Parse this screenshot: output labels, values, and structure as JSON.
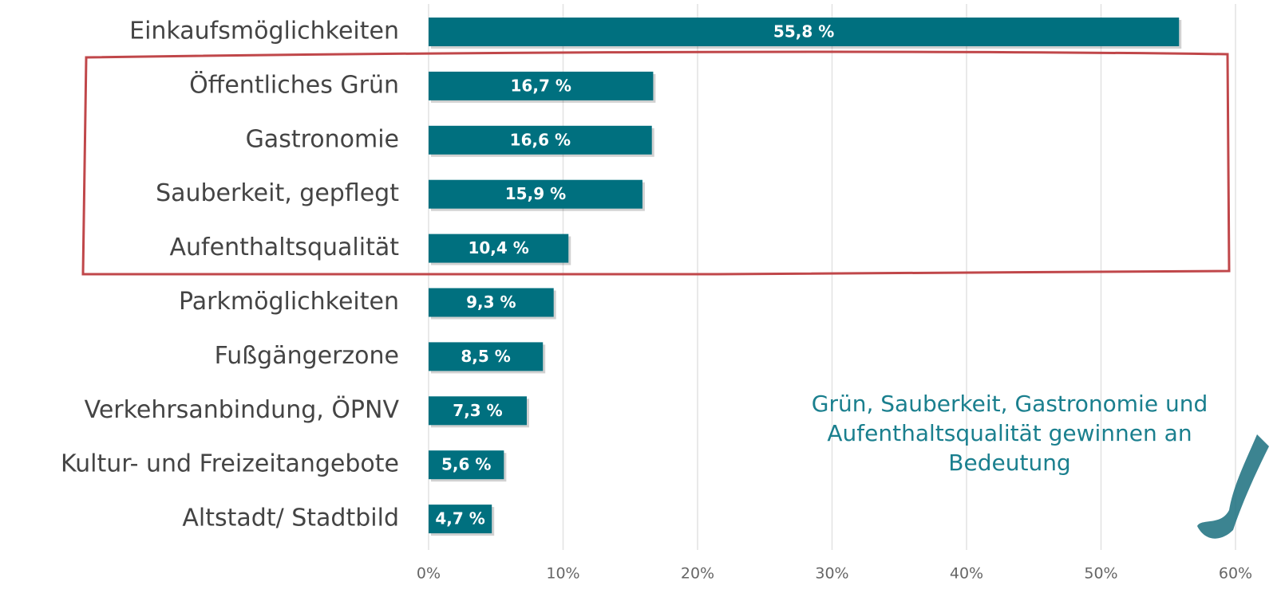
{
  "chart_data": {
    "type": "hbar",
    "categories": [
      "Einkaufsmöglichkeiten",
      "Öffentliches Grün",
      "Gastronomie",
      "Sauberkeit, gepflegt",
      "Aufenthaltsqualität",
      "Parkmöglichkeiten",
      "Fußgängerzone",
      "Verkehrsanbindung, ÖPNV",
      "Kultur- und Freizeitangebote",
      "Altstadt/ Stadtbild"
    ],
    "values": [
      55.8,
      16.7,
      16.6,
      15.9,
      10.4,
      9.3,
      8.5,
      7.3,
      5.6,
      4.7
    ],
    "value_labels": [
      "55,8 %",
      "16,7 %",
      "16,6 %",
      "15,9 %",
      "10,4 %",
      "9,3 %",
      "8,5 %",
      "7,3 %",
      "5,6 %",
      "4,7 %"
    ],
    "color": "#00707f",
    "xlim": [
      0,
      60
    ],
    "xticks": [
      {
        "value": 0,
        "label": "0%"
      },
      {
        "value": 10,
        "label": "10%"
      },
      {
        "value": 20,
        "label": "20%"
      },
      {
        "value": 30,
        "label": "30%"
      },
      {
        "value": 40,
        "label": "40%"
      },
      {
        "value": 50,
        "label": "50%"
      },
      {
        "value": 60,
        "label": "60%"
      }
    ],
    "grid": true,
    "annotation": [
      "Grün, Sauberkeit, Gastronomie und",
      "Aufenthaltsqualität gewinnen an",
      "Bedeutung"
    ]
  }
}
